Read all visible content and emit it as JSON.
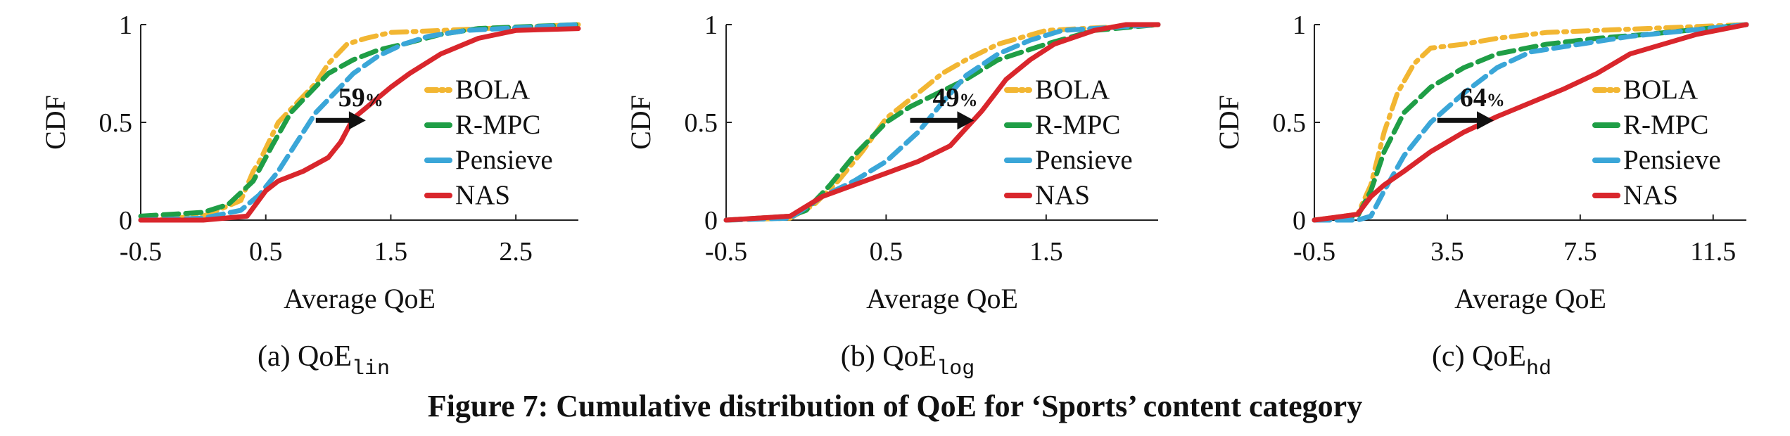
{
  "colors": {
    "BOLA": "#f2b632",
    "R-MPC": "#1f9e46",
    "Pensieve": "#3aa6d8",
    "NAS": "#d9262c",
    "axis": "#222222",
    "arrow": "#111111"
  },
  "figure_caption": "Figure 7: Cumulative distribution of QoE for ‘Sports’ content category",
  "chart_data": [
    {
      "type": "line",
      "subcaption_prefix": "(a) QoE",
      "subcaption_sub": "lin",
      "ylabel": "CDF",
      "xlabel": "Average QoE",
      "xlim": [
        -0.5,
        3.0
      ],
      "ylim": [
        0,
        1
      ],
      "xticks": [
        -0.5,
        0.5,
        1.5,
        2.5
      ],
      "xtick_labels": [
        "-0.5",
        "0.5",
        "1.5",
        "2.5"
      ],
      "yticks": [
        0,
        0.5,
        1
      ],
      "ytick_labels": [
        "0",
        "0.5",
        "1"
      ],
      "annotation": {
        "text": "59",
        "suffix": "%",
        "from": [
          0.9,
          0.51
        ],
        "to": [
          1.3,
          0.51
        ]
      },
      "legend": "right",
      "series": [
        {
          "name": "BOLA",
          "dash": "dashdot",
          "x": [
            -0.5,
            0.0,
            0.3,
            0.4,
            0.45,
            0.6,
            0.75,
            0.9,
            1.0,
            1.15,
            1.3,
            1.5,
            1.9,
            3.0
          ],
          "y": [
            0.0,
            0.02,
            0.1,
            0.25,
            0.3,
            0.5,
            0.6,
            0.7,
            0.8,
            0.9,
            0.93,
            0.96,
            0.97,
            1.0
          ]
        },
        {
          "name": "R-MPC",
          "dash": "dash",
          "x": [
            -0.5,
            0.0,
            0.2,
            0.4,
            0.55,
            0.7,
            0.85,
            1.0,
            1.2,
            1.4,
            1.6,
            1.9,
            2.2,
            3.0
          ],
          "y": [
            0.02,
            0.04,
            0.08,
            0.2,
            0.38,
            0.55,
            0.65,
            0.75,
            0.82,
            0.87,
            0.9,
            0.95,
            0.98,
            1.0
          ]
        },
        {
          "name": "Pensieve",
          "dash": "dash",
          "x": [
            -0.5,
            0.0,
            0.3,
            0.45,
            0.6,
            0.75,
            0.9,
            1.05,
            1.2,
            1.4,
            1.6,
            1.8,
            2.1,
            3.0
          ],
          "y": [
            0.0,
            0.01,
            0.05,
            0.13,
            0.25,
            0.4,
            0.55,
            0.65,
            0.75,
            0.84,
            0.9,
            0.94,
            0.97,
            1.0
          ]
        },
        {
          "name": "NAS",
          "dash": "solid",
          "x": [
            -0.5,
            0.0,
            0.35,
            0.5,
            0.6,
            0.8,
            1.0,
            1.1,
            1.2,
            1.35,
            1.5,
            1.65,
            1.9,
            2.2,
            2.5,
            3.0
          ],
          "y": [
            0.0,
            0.0,
            0.02,
            0.15,
            0.2,
            0.25,
            0.32,
            0.4,
            0.52,
            0.6,
            0.68,
            0.75,
            0.85,
            0.93,
            0.97,
            0.98
          ]
        }
      ]
    },
    {
      "type": "line",
      "subcaption_prefix": "(b) QoE",
      "subcaption_sub": "log",
      "ylabel": "CDF",
      "xlabel": "Average QoE",
      "xlim": [
        -0.5,
        2.2
      ],
      "ylim": [
        0,
        1
      ],
      "xticks": [
        -0.5,
        0.5,
        1.5
      ],
      "xtick_labels": [
        "-0.5",
        "0.5",
        "1.5"
      ],
      "yticks": [
        0,
        0.5,
        1
      ],
      "ytick_labels": [
        "0",
        "0.5",
        "1"
      ],
      "annotation": {
        "text": "49",
        "suffix": "%",
        "from": [
          0.65,
          0.51
        ],
        "to": [
          1.05,
          0.51
        ]
      },
      "legend": "right",
      "series": [
        {
          "name": "BOLA",
          "dash": "dashdot",
          "x": [
            -0.5,
            -0.1,
            0.05,
            0.2,
            0.35,
            0.5,
            0.7,
            0.85,
            1.0,
            1.2,
            1.5,
            2.2
          ],
          "y": [
            0.0,
            0.01,
            0.08,
            0.2,
            0.35,
            0.52,
            0.65,
            0.75,
            0.82,
            0.9,
            0.97,
            1.0
          ]
        },
        {
          "name": "R-MPC",
          "dash": "dash",
          "x": [
            -0.5,
            -0.1,
            0.0,
            0.15,
            0.3,
            0.5,
            0.65,
            0.85,
            1.0,
            1.2,
            1.5,
            1.8,
            2.2
          ],
          "y": [
            0.0,
            0.02,
            0.05,
            0.18,
            0.33,
            0.5,
            0.58,
            0.66,
            0.72,
            0.82,
            0.9,
            0.97,
            1.0
          ]
        },
        {
          "name": "Pensieve",
          "dash": "dash",
          "x": [
            -0.5,
            -0.1,
            0.1,
            0.3,
            0.5,
            0.7,
            0.85,
            1.0,
            1.2,
            1.4,
            1.6,
            2.2
          ],
          "y": [
            0.0,
            0.01,
            0.12,
            0.2,
            0.3,
            0.45,
            0.6,
            0.74,
            0.85,
            0.92,
            0.97,
            1.0
          ]
        },
        {
          "name": "NAS",
          "dash": "solid",
          "x": [
            -0.5,
            -0.1,
            0.1,
            0.3,
            0.5,
            0.7,
            0.9,
            1.0,
            1.1,
            1.25,
            1.4,
            1.55,
            1.8,
            2.0,
            2.2
          ],
          "y": [
            0.0,
            0.02,
            0.12,
            0.18,
            0.24,
            0.3,
            0.38,
            0.47,
            0.56,
            0.72,
            0.82,
            0.9,
            0.97,
            1.0,
            1.0
          ]
        }
      ]
    },
    {
      "type": "line",
      "subcaption_prefix": "(c) QoE",
      "subcaption_sub": "hd",
      "ylabel": "CDF",
      "xlabel": "Average QoE",
      "xlim": [
        -0.5,
        12.5
      ],
      "ylim": [
        0,
        1
      ],
      "xticks": [
        -0.5,
        3.5,
        7.5,
        11.5
      ],
      "xtick_labels": [
        "-0.5",
        "3.5",
        "7.5",
        "11.5"
      ],
      "yticks": [
        0,
        0.5,
        1
      ],
      "ytick_labels": [
        "0",
        "0.5",
        "1"
      ],
      "annotation": {
        "text": "64",
        "suffix": "%",
        "from": [
          3.2,
          0.51
        ],
        "to": [
          4.9,
          0.51
        ]
      },
      "legend": "right",
      "series": [
        {
          "name": "BOLA",
          "dash": "dashdot",
          "x": [
            -0.5,
            0.8,
            1.2,
            1.6,
            2.0,
            2.5,
            3.0,
            4.0,
            5.0,
            6.5,
            8.0,
            12.5
          ],
          "y": [
            0.0,
            0.03,
            0.18,
            0.45,
            0.65,
            0.8,
            0.88,
            0.9,
            0.93,
            0.96,
            0.97,
            1.0
          ]
        },
        {
          "name": "R-MPC",
          "dash": "dash",
          "x": [
            -0.5,
            0.8,
            1.2,
            1.6,
            2.2,
            3.0,
            4.0,
            5.0,
            6.5,
            8.0,
            9.5,
            12.5
          ],
          "y": [
            0.0,
            0.02,
            0.15,
            0.35,
            0.55,
            0.68,
            0.78,
            0.85,
            0.9,
            0.93,
            0.95,
            1.0
          ]
        },
        {
          "name": "Pensieve",
          "dash": "dash",
          "x": [
            -0.5,
            0.8,
            1.2,
            1.6,
            2.2,
            3.0,
            4.0,
            5.0,
            6.0,
            7.5,
            9.0,
            12.5
          ],
          "y": [
            0.0,
            0.0,
            0.02,
            0.15,
            0.33,
            0.5,
            0.65,
            0.78,
            0.86,
            0.9,
            0.94,
            1.0
          ]
        },
        {
          "name": "NAS",
          "dash": "solid",
          "x": [
            -0.5,
            0.8,
            1.2,
            1.6,
            2.2,
            3.0,
            4.0,
            5.0,
            6.0,
            7.0,
            8.0,
            9.0,
            10.0,
            11.0,
            12.5
          ],
          "y": [
            0.0,
            0.03,
            0.12,
            0.18,
            0.25,
            0.35,
            0.45,
            0.53,
            0.6,
            0.67,
            0.75,
            0.85,
            0.9,
            0.95,
            1.0
          ]
        }
      ]
    }
  ]
}
